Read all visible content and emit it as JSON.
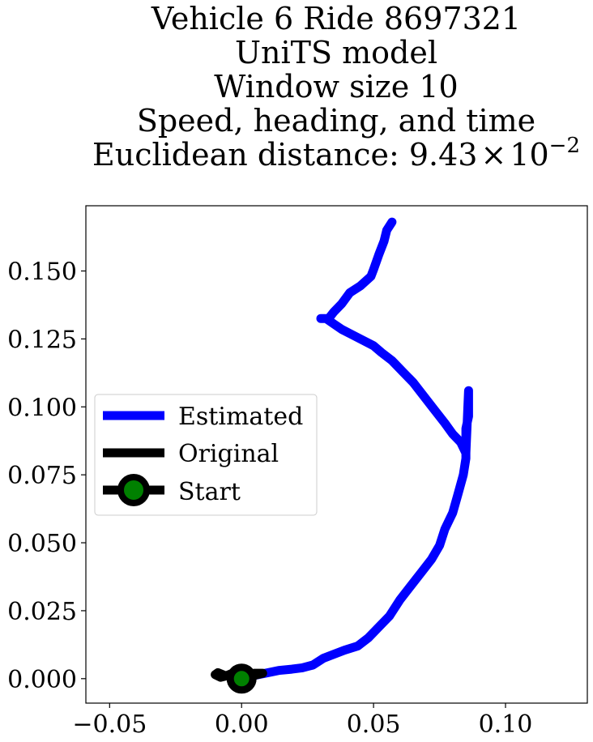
{
  "chart_data": {
    "type": "line",
    "title_lines": [
      "Vehicle 6 Ride 8697321",
      "UniTS model",
      "Window size 10",
      "Speed, heading, and time"
    ],
    "title_metric_prefix": "Euclidean distance: ",
    "title_metric_mantissa": "9.43",
    "title_metric_times": "×",
    "title_metric_base": "10",
    "title_metric_exponent": "−2",
    "xlabel": "",
    "ylabel": "",
    "xlim": [
      -0.059,
      0.131
    ],
    "ylim": [
      -0.009,
      0.174
    ],
    "x_ticks": [
      -0.05,
      0.0,
      0.05,
      0.1
    ],
    "x_tick_labels": [
      "−0.05",
      "0.00",
      "0.05",
      "0.10"
    ],
    "y_ticks": [
      0.0,
      0.025,
      0.05,
      0.075,
      0.1,
      0.125,
      0.15
    ],
    "y_tick_labels": [
      "0.000",
      "0.025",
      "0.050",
      "0.075",
      "0.100",
      "0.125",
      "0.150"
    ],
    "grid": false,
    "legend_position": "center-left",
    "series": [
      {
        "name": "Estimated",
        "color": "#0000ff",
        "x": [
          0.0,
          0.004,
          0.009,
          0.014,
          0.019,
          0.023,
          0.027,
          0.031,
          0.035,
          0.039,
          0.044,
          0.048,
          0.052,
          0.056,
          0.06,
          0.064,
          0.068,
          0.072,
          0.075,
          0.077,
          0.08,
          0.082,
          0.084,
          0.085,
          0.085,
          0.085,
          0.086,
          0.086,
          0.086,
          0.085,
          0.083,
          0.08,
          0.077,
          0.073,
          0.069,
          0.065,
          0.061,
          0.057,
          0.053,
          0.05,
          0.046,
          0.042,
          0.038,
          0.035,
          0.032,
          0.03,
          0.033,
          0.035,
          0.038,
          0.041,
          0.045,
          0.049,
          0.05,
          0.052,
          0.054,
          0.055,
          0.057
        ],
        "y": [
          0.0,
          0.001,
          0.002,
          0.003,
          0.0035,
          0.004,
          0.005,
          0.0075,
          0.009,
          0.0105,
          0.012,
          0.015,
          0.019,
          0.023,
          0.029,
          0.034,
          0.039,
          0.044,
          0.049,
          0.055,
          0.061,
          0.068,
          0.075,
          0.081,
          0.087,
          0.092,
          0.0965,
          0.1005,
          0.106,
          0.083,
          0.087,
          0.09,
          0.094,
          0.099,
          0.104,
          0.109,
          0.113,
          0.117,
          0.12,
          0.1225,
          0.1245,
          0.1265,
          0.1285,
          0.1305,
          0.1325,
          0.1325,
          0.1325,
          0.135,
          0.138,
          0.142,
          0.1445,
          0.148,
          0.1505,
          0.156,
          0.161,
          0.165,
          0.168
        ]
      },
      {
        "name": "Original",
        "color": "#000000",
        "x": [
          0.0,
          0.006,
          0.008,
          0.005,
          0.0,
          -0.003,
          -0.006,
          -0.009,
          -0.01,
          -0.008,
          -0.005,
          -0.003
        ],
        "y": [
          0.0,
          0.0015,
          0.002,
          0.002,
          0.0012,
          0.0022,
          0.001,
          0.0022,
          0.0015,
          0.0005,
          0.0012,
          0.002
        ]
      }
    ],
    "start_point": {
      "name": "Start",
      "x": 0.0,
      "y": 0.0,
      "marker_color": "#008000",
      "edge_color": "#000000"
    }
  }
}
